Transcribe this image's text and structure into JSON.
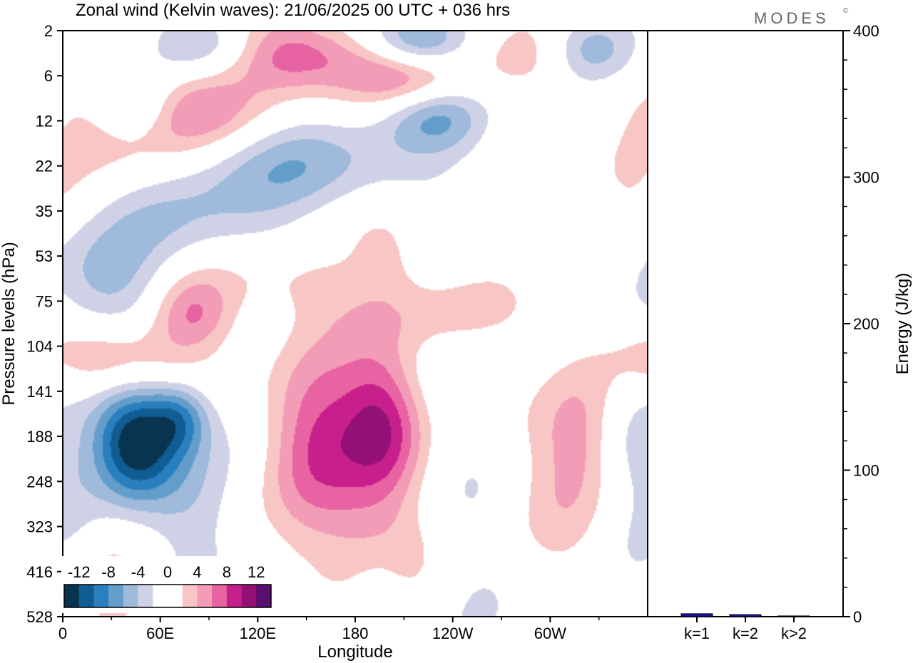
{
  "title": "Zonal wind (Kelvin waves):  21/06/2025  00 UTC  + 036 hrs",
  "logo": "MODES",
  "logo_mark": "©",
  "colors": {
    "axis": "#000000",
    "levels": [
      "#08344f",
      "#0f5d93",
      "#2a80bf",
      "#639ecb",
      "#9fbadb",
      "#cfd2e6",
      "#ffffff",
      "#ffffff",
      "#f8c6c4",
      "#f39cb7",
      "#e863a1",
      "#c71f8b",
      "#931177",
      "#5a0e6e"
    ]
  },
  "main_chart": {
    "type": "heatmap",
    "xlabel": "Longitude",
    "ylabel": "Pressure levels (hPa)",
    "x_ticks": [
      "0",
      "60E",
      "120E",
      "180",
      "120W",
      "60W"
    ],
    "y_ticks": [
      "2",
      "6",
      "12",
      "22",
      "35",
      "53",
      "75",
      "104",
      "141",
      "188",
      "248",
      "323",
      "416",
      "528"
    ],
    "x_range_deg": [
      0,
      360
    ],
    "colorbar": {
      "labels": [
        "-12",
        "-8",
        "-4",
        "0",
        "4",
        "8",
        "12"
      ],
      "levels": [
        -14,
        -12,
        -10,
        -8,
        -6,
        -4,
        -2,
        0,
        2,
        4,
        6,
        8,
        10,
        12,
        14
      ]
    },
    "features": [
      {
        "name": "neg-upper-1",
        "lon": 45,
        "lev": 1.7,
        "amp": -7.0,
        "sl": 18,
        "sp": 0.55
      },
      {
        "name": "neg-upper-2",
        "lon": 90,
        "lev": 0.3,
        "amp": -5.0,
        "sl": 25,
        "sp": 0.5
      },
      {
        "name": "neg-upper-3",
        "lon": 218,
        "lev": 0.3,
        "amp": -8.0,
        "sl": 22,
        "sp": 0.5
      },
      {
        "name": "neg-upper-4",
        "lon": 230,
        "lev": 1.9,
        "amp": -5.5,
        "sl": 22,
        "sp": 0.55
      },
      {
        "name": "neg-upper-5",
        "lon": 325,
        "lev": 0.4,
        "amp": -4.0,
        "sl": 18,
        "sp": 0.5
      },
      {
        "name": "neg-mid-1",
        "lon": 120,
        "lev": 3.0,
        "amp": -3.0,
        "sl": 50,
        "sp": 0.8
      },
      {
        "name": "neg-mid-2",
        "lon": 170,
        "lev": 3.0,
        "amp": -2.5,
        "sl": 60,
        "sp": 0.7
      },
      {
        "name": "neg-mid-3",
        "lon": 30,
        "lev": 5.6,
        "amp": -4.5,
        "sl": 30,
        "sp": 0.9
      },
      {
        "name": "neg-mid-4",
        "lon": 80,
        "lev": 4.2,
        "amp": -3.0,
        "sl": 40,
        "sp": 0.7
      },
      {
        "name": "neg-lower-1",
        "lon": 45,
        "lev": 9.1,
        "amp": -14.0,
        "sl": 18,
        "sp": 0.9
      },
      {
        "name": "neg-lower-2",
        "lon": 72,
        "lev": 8.6,
        "amp": -7.0,
        "sl": 13,
        "sp": 0.55
      },
      {
        "name": "neg-lower-3",
        "lon": 75,
        "lev": 10.5,
        "amp": -3.5,
        "sl": 20,
        "sp": 1.2
      },
      {
        "name": "neg-lower-4",
        "lon": 250,
        "lev": 10.0,
        "amp": -3.0,
        "sl": 25,
        "sp": 2.5
      },
      {
        "name": "neg-lower-5",
        "lon": 350,
        "lev": 9.5,
        "amp": -3.5,
        "sl": 20,
        "sp": 1.5
      },
      {
        "name": "neg-lower-6",
        "lon": 195,
        "lev": 12.7,
        "amp": -2.5,
        "sl": 12,
        "sp": 0.8
      },
      {
        "name": "pos-upper-1",
        "lon": 140,
        "lev": 0.5,
        "amp": 8.0,
        "sl": 30,
        "sp": 0.6
      },
      {
        "name": "pos-upper-2",
        "lon": 215,
        "lev": 1.0,
        "amp": 7.0,
        "sl": 28,
        "sp": 0.5
      },
      {
        "name": "pos-upper-3",
        "lon": 70,
        "lev": 1.7,
        "amp": 6.0,
        "sl": 35,
        "sp": 0.6
      },
      {
        "name": "pos-upper-4",
        "lon": 50,
        "lev": 2.4,
        "amp": 4.0,
        "sl": 35,
        "sp": 0.7
      },
      {
        "name": "pos-upper-5",
        "lon": 285,
        "lev": 0.6,
        "amp": 2.5,
        "sl": 20,
        "sp": 0.5
      },
      {
        "name": "pos-upper-6",
        "lon": 340,
        "lev": 3.2,
        "amp": 2.5,
        "sl": 20,
        "sp": 0.7
      },
      {
        "name": "pos-mid-1",
        "lon": 200,
        "lev": 4.9,
        "amp": 3.0,
        "sl": 15,
        "sp": 0.7
      },
      {
        "name": "pos-mid-2",
        "lon": 30,
        "lev": 7.3,
        "amp": 6.0,
        "sl": 30,
        "sp": 0.6
      },
      {
        "name": "pos-mid-3",
        "lon": 80,
        "lev": 6.3,
        "amp": 6.0,
        "sl": 18,
        "sp": 0.6
      },
      {
        "name": "pos-mid-4",
        "lon": 135,
        "lev": 5.6,
        "amp": 2.5,
        "sl": 40,
        "sp": 0.6
      },
      {
        "name": "pos-mid-5",
        "lon": 240,
        "lev": 6.3,
        "amp": 3.0,
        "sl": 50,
        "sp": 0.6
      },
      {
        "name": "pos-lower-1",
        "lon": 158,
        "lev": 9.0,
        "amp": 7.5,
        "sl": 22,
        "sp": 1.3
      },
      {
        "name": "pos-lower-2",
        "lon": 197,
        "lev": 8.7,
        "amp": 10.0,
        "sl": 18,
        "sp": 1.2
      },
      {
        "name": "pos-lower-3",
        "lon": 190,
        "lev": 11.3,
        "amp": 4.0,
        "sl": 30,
        "sp": 1.0
      },
      {
        "name": "pos-lower-4",
        "lon": 295,
        "lev": 9.8,
        "amp": 3.5,
        "sl": 28,
        "sp": 1.6
      },
      {
        "name": "pos-lower-5",
        "lon": 320,
        "lev": 9.0,
        "amp": 3.5,
        "sl": 18,
        "sp": 1.0
      },
      {
        "name": "pos-lower-6",
        "lon": 30,
        "lev": 12.6,
        "amp": 3.0,
        "sl": 12,
        "sp": 0.9
      }
    ]
  },
  "energy_chart": {
    "type": "bar",
    "ylabel": "Energy (J/kg)",
    "y_ticks": [
      "0",
      "100",
      "200",
      "300",
      "400"
    ],
    "ylim": [
      0,
      400
    ],
    "categories": [
      "k=1",
      "k=2",
      "k>2"
    ],
    "values": [
      2.0,
      1.4,
      0.5
    ],
    "bar_color": "#1414a0"
  }
}
